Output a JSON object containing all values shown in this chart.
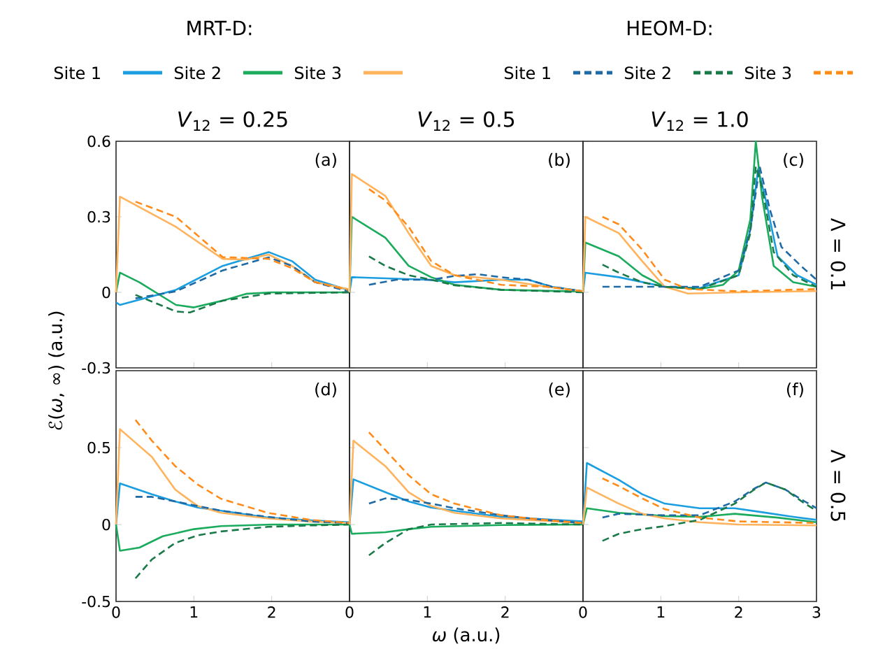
{
  "chart_data": [
    {
      "type": "line",
      "title": "*V*$_{12}$ = 0.25",
      "legend": "top",
      "legend_title": "MRT-D:",
      "annotations": [
        "(a)"
      ],
      "xlim": [
        0,
        3
      ],
      "ylim": [
        -0.3,
        0.6
      ],
      "xticks": [
        0,
        1,
        2,
        3
      ],
      "yticks": [
        -0.3,
        0,
        0.3,
        0.6
      ],
      "tick_labels": "y",
      "series": [
        {
          "name": "Site 1",
          "color": "#1a9ee0",
          "line_style": "solid",
          "x": [
            0,
            0.05,
            0.77,
            1.37,
            1.96,
            2.26,
            2.56,
            2.98
          ],
          "values": [
            -0.04,
            -0.05,
            0.01,
            0.105,
            0.16,
            0.124,
            0.05,
            0.01
          ]
        },
        {
          "name": "Site 2",
          "color": "#1aab5c",
          "line_style": "solid",
          "x": [
            0,
            0.05,
            0.3,
            0.77,
            1.0,
            1.37,
            1.67,
            2.0,
            3.0
          ],
          "values": [
            0,
            0.078,
            0.04,
            -0.05,
            -0.06,
            -0.033,
            -0.006,
            0,
            0
          ]
        },
        {
          "name": "Site 3",
          "color": "#ffb35c",
          "line_style": "solid",
          "x": [
            0,
            0.05,
            0.77,
            1.37,
            1.67,
            1.96,
            2.26,
            2.56,
            2.98
          ],
          "values": [
            0,
            0.38,
            0.26,
            0.133,
            0.13,
            0.15,
            0.105,
            0.04,
            0.013
          ]
        },
        {
          "color": "#1f6aa5",
          "line_style": "dashed",
          "x": [
            0.25,
            0.77,
            1.37,
            1.96,
            2.26,
            2.56,
            2.98
          ],
          "values": [
            -0.024,
            0.004,
            0.087,
            0.139,
            0.105,
            0.04,
            0.004
          ]
        },
        {
          "color": "#1a7a4a",
          "line_style": "dashed",
          "x": [
            0.25,
            0.77,
            0.95,
            1.37,
            1.96,
            3.0
          ],
          "values": [
            -0.01,
            -0.076,
            -0.08,
            -0.033,
            -0.005,
            0
          ]
        },
        {
          "color": "#ff8c1a",
          "line_style": "dashed",
          "x": [
            0.25,
            0.77,
            1.37,
            1.96,
            2.26,
            2.56,
            2.98
          ],
          "values": [
            0.36,
            0.3,
            0.14,
            0.133,
            0.096,
            0.04,
            0.01
          ]
        }
      ]
    },
    {
      "type": "line",
      "title": "*V*$_{12}$ = 0.5",
      "annotations": [
        "(b)"
      ],
      "xlim": [
        0,
        3
      ],
      "ylim": [
        -0.3,
        0.6
      ],
      "xticks": [
        0,
        1,
        2,
        3
      ],
      "yticks": [
        -0.3,
        0,
        0.3,
        0.6
      ],
      "tick_labels": false,
      "series": [
        {
          "color": "#1a9ee0",
          "line_style": "solid",
          "x": [
            0,
            0.03,
            1.0,
            1.35,
            1.95,
            2.3,
            2.6,
            3.0
          ],
          "values": [
            0,
            0.06,
            0.05,
            0.04,
            0.05,
            0.05,
            0.022,
            0.004
          ]
        },
        {
          "color": "#1aab5c",
          "line_style": "solid",
          "x": [
            0,
            0.03,
            0.46,
            0.76,
            1.05,
            1.35,
            1.95,
            3.0
          ],
          "values": [
            0,
            0.3,
            0.217,
            0.105,
            0.06,
            0.03,
            0.01,
            0.003
          ]
        },
        {
          "color": "#ffb35c",
          "line_style": "solid",
          "x": [
            0,
            0.03,
            0.46,
            0.76,
            1.05,
            1.35,
            1.95,
            2.54,
            2.99
          ],
          "values": [
            0,
            0.47,
            0.383,
            0.235,
            0.105,
            0.068,
            0.05,
            0.022,
            0.004
          ]
        },
        {
          "color": "#1f6aa5",
          "line_style": "dashed",
          "x": [
            0.25,
            0.6,
            1.05,
            1.35,
            1.65,
            1.95,
            2.3,
            2.6,
            3.0
          ],
          "values": [
            0.03,
            0.05,
            0.05,
            0.065,
            0.072,
            0.06,
            0.05,
            0.022,
            0.004
          ]
        },
        {
          "color": "#1a7a4a",
          "line_style": "dashed",
          "x": [
            0.25,
            0.46,
            0.76,
            1.05,
            1.35,
            1.95,
            3.0
          ],
          "values": [
            0.143,
            0.105,
            0.068,
            0.05,
            0.028,
            0.01,
            0
          ]
        },
        {
          "color": "#ff8c1a",
          "line_style": "dashed",
          "x": [
            0.25,
            0.46,
            0.76,
            1.05,
            1.35,
            1.95,
            2.54,
            3.0
          ],
          "values": [
            0.41,
            0.365,
            0.26,
            0.124,
            0.068,
            0.03,
            0.022,
            0.004
          ]
        }
      ]
    },
    {
      "type": "line",
      "title": "*V*$_{12}$ = 1.0",
      "y2label": "Λ = 0.1",
      "legend": "top",
      "legend_title": "HEOM-D:",
      "annotations": [
        "(c)"
      ],
      "xlim": [
        0,
        3
      ],
      "ylim": [
        -0.3,
        0.6
      ],
      "xticks": [
        0,
        1,
        2,
        3
      ],
      "yticks": [
        -0.3,
        0,
        0.3,
        0.6
      ],
      "tick_labels": false,
      "series": [
        {
          "color": "#1a9ee0",
          "line_style": "solid",
          "x": [
            0,
            0.03,
            0.46,
            1.05,
            1.5,
            2.0,
            2.15,
            2.25,
            2.35,
            2.5,
            2.75,
            3.0
          ],
          "values": [
            0,
            0.078,
            0.06,
            0.022,
            0.017,
            0.068,
            0.25,
            0.49,
            0.365,
            0.143,
            0.068,
            0.03
          ]
        },
        {
          "color": "#1aab5c",
          "line_style": "solid",
          "x": [
            0,
            0.03,
            0.46,
            0.76,
            1.05,
            1.5,
            1.8,
            2.0,
            2.15,
            2.22,
            2.3,
            2.45,
            2.7,
            3.0
          ],
          "values": [
            0,
            0.198,
            0.143,
            0.068,
            0.022,
            0.013,
            0.03,
            0.087,
            0.29,
            0.6,
            0.38,
            0.105,
            0.04,
            0.022
          ]
        },
        {
          "color": "#ffb35c",
          "line_style": "solid",
          "x": [
            0,
            0.03,
            0.46,
            0.76,
            1.05,
            1.35,
            2.0,
            3.0
          ],
          "values": [
            0,
            0.3,
            0.235,
            0.124,
            0.022,
            -0.005,
            0,
            0.005
          ]
        },
        {
          "name": "Site 1",
          "color": "#1f6aa5",
          "line_style": "dashed",
          "x": [
            0.25,
            0.6,
            1.05,
            1.5,
            2.0,
            2.15,
            2.27,
            2.4,
            2.55,
            2.8,
            3.0
          ],
          "values": [
            0.022,
            0.022,
            0.022,
            0.022,
            0.087,
            0.25,
            0.5,
            0.33,
            0.18,
            0.105,
            0.05
          ]
        },
        {
          "name": "Site 2",
          "color": "#1a7a4a",
          "line_style": "dashed",
          "x": [
            0.25,
            0.46,
            0.76,
            1.05,
            1.5,
            2.0,
            2.15,
            2.22,
            2.3,
            2.45,
            2.7,
            3.0
          ],
          "values": [
            0.11,
            0.078,
            0.04,
            0.022,
            0.013,
            0.068,
            0.235,
            0.5,
            0.42,
            0.16,
            0.068,
            0.022
          ]
        },
        {
          "name": "Site 3",
          "color": "#ff8c1a",
          "line_style": "dashed",
          "x": [
            0.25,
            0.46,
            0.76,
            1.05,
            1.35,
            2.0,
            3.0
          ],
          "values": [
            0.3,
            0.27,
            0.17,
            0.05,
            0.013,
            0.004,
            0.013
          ]
        }
      ]
    },
    {
      "type": "line",
      "ylabel": "ℰ(*ω*, ∞) (a.u.)",
      "annotations": [
        "(d)"
      ],
      "xlim": [
        0,
        3
      ],
      "ylim": [
        -0.5,
        1.0
      ],
      "xticks": [
        0,
        1,
        2
      ],
      "yticks": [
        -0.5,
        0,
        0.5
      ],
      "series": [
        {
          "color": "#1a9ee0",
          "line_style": "solid",
          "x": [
            0,
            0.05,
            0.46,
            0.76,
            1.05,
            1.35,
            1.95,
            2.5,
            3.0
          ],
          "values": [
            0,
            0.267,
            0.197,
            0.15,
            0.11,
            0.09,
            0.045,
            0.027,
            0.015
          ]
        },
        {
          "color": "#1aab5c",
          "line_style": "solid",
          "x": [
            0,
            0.05,
            0.3,
            0.6,
            1.0,
            1.35,
            2.0,
            3.0
          ],
          "values": [
            0,
            -0.17,
            -0.15,
            -0.076,
            -0.03,
            -0.01,
            0,
            0
          ]
        },
        {
          "color": "#ffb35c",
          "line_style": "solid",
          "x": [
            0,
            0.05,
            0.46,
            0.76,
            1.05,
            1.35,
            1.95,
            2.5,
            3.0
          ],
          "values": [
            0,
            0.62,
            0.44,
            0.227,
            0.12,
            0.076,
            0.04,
            0.02,
            0.01
          ]
        },
        {
          "color": "#1f6aa5",
          "line_style": "dashed",
          "x": [
            0.25,
            0.46,
            0.76,
            1.05,
            1.35,
            1.95,
            2.5,
            3.0
          ],
          "values": [
            0.18,
            0.18,
            0.15,
            0.12,
            0.09,
            0.05,
            0.02,
            0.01
          ]
        },
        {
          "color": "#1a7a4a",
          "line_style": "dashed",
          "x": [
            0.25,
            0.46,
            0.76,
            1.05,
            1.35,
            1.95,
            2.5,
            3.0
          ],
          "values": [
            -0.35,
            -0.227,
            -0.12,
            -0.07,
            -0.045,
            -0.015,
            -0.006,
            0
          ]
        },
        {
          "color": "#ff8c1a",
          "line_style": "dashed",
          "x": [
            0.25,
            0.46,
            0.76,
            1.05,
            1.35,
            1.95,
            2.5,
            3.0
          ],
          "values": [
            0.68,
            0.545,
            0.38,
            0.26,
            0.167,
            0.076,
            0.03,
            0.01
          ]
        }
      ]
    },
    {
      "type": "line",
      "xlabel": "*ω* (a.u.)",
      "annotations": [
        "(e)"
      ],
      "xlim": [
        0,
        3
      ],
      "ylim": [
        -0.5,
        1.0
      ],
      "xticks": [
        0,
        1,
        2
      ],
      "yticks": [
        -0.5,
        0,
        0.5
      ],
      "tick_labels": "x",
      "series": [
        {
          "color": "#1a9ee0",
          "line_style": "solid",
          "x": [
            0,
            0.05,
            0.46,
            0.76,
            1.05,
            1.35,
            1.95,
            3.0
          ],
          "values": [
            0,
            0.294,
            0.21,
            0.15,
            0.11,
            0.09,
            0.05,
            0.02
          ]
        },
        {
          "color": "#1aab5c",
          "line_style": "solid",
          "x": [
            0,
            0.03,
            0.46,
            0.76,
            1.05,
            1.95,
            3.0
          ],
          "values": [
            0,
            -0.06,
            -0.05,
            -0.03,
            -0.015,
            -0.003,
            0
          ]
        },
        {
          "color": "#ffb35c",
          "line_style": "solid",
          "x": [
            0,
            0.05,
            0.46,
            0.76,
            1.05,
            1.35,
            1.95,
            3.0
          ],
          "values": [
            0,
            0.545,
            0.38,
            0.21,
            0.12,
            0.076,
            0.04,
            0.01
          ]
        },
        {
          "color": "#1f6aa5",
          "line_style": "dashed",
          "x": [
            0.25,
            0.46,
            0.76,
            1.05,
            1.35,
            1.95,
            2.5,
            3.0
          ],
          "values": [
            0.136,
            0.17,
            0.16,
            0.136,
            0.106,
            0.06,
            0.03,
            0.01
          ]
        },
        {
          "color": "#1a7a4a",
          "line_style": "dashed",
          "x": [
            0.25,
            0.46,
            0.76,
            1.05,
            1.95,
            3.0
          ],
          "values": [
            -0.2,
            -0.12,
            -0.03,
            0,
            0.01,
            0
          ]
        },
        {
          "color": "#ff8c1a",
          "line_style": "dashed",
          "x": [
            0.25,
            0.46,
            0.76,
            1.05,
            1.35,
            1.95,
            2.5,
            3.0
          ],
          "values": [
            0.6,
            0.485,
            0.32,
            0.197,
            0.136,
            0.06,
            0.03,
            0.01
          ]
        }
      ]
    },
    {
      "type": "line",
      "y2label": "Λ = 0.5",
      "annotations": [
        "(f)"
      ],
      "xlim": [
        0,
        3
      ],
      "ylim": [
        -0.5,
        1.0
      ],
      "xticks": [
        0,
        1,
        2,
        3
      ],
      "yticks": [
        -0.5,
        0,
        0.5
      ],
      "tick_labels": "x",
      "series": [
        {
          "color": "#1a9ee0",
          "line_style": "solid",
          "x": [
            0,
            0.05,
            0.46,
            0.76,
            1.05,
            1.5,
            1.95,
            2.3,
            2.7,
            3.0
          ],
          "values": [
            0,
            0.4,
            0.29,
            0.197,
            0.136,
            0.106,
            0.106,
            0.08,
            0.05,
            0.03
          ]
        },
        {
          "color": "#1aab5c",
          "line_style": "solid",
          "x": [
            0,
            0.05,
            0.46,
            1.05,
            1.5,
            1.95,
            2.5,
            3.0
          ],
          "values": [
            0,
            0.106,
            0.076,
            0.055,
            0.05,
            0.07,
            0.045,
            0.015
          ]
        },
        {
          "color": "#ffb35c",
          "line_style": "solid",
          "x": [
            0,
            0.05,
            0.46,
            0.76,
            1.05,
            1.5,
            2.0,
            3.0
          ],
          "values": [
            0,
            0.24,
            0.136,
            0.07,
            0.04,
            0.015,
            0,
            -0.006
          ]
        },
        {
          "color": "#1f6aa5",
          "line_style": "dashed",
          "x": [
            0.25,
            0.46,
            1.05,
            1.5,
            1.95,
            2.2,
            2.35,
            2.6,
            2.85,
            3.0
          ],
          "values": [
            0.045,
            0.07,
            0.06,
            0.06,
            0.15,
            0.233,
            0.273,
            0.227,
            0.15,
            0.106
          ]
        },
        {
          "color": "#1a7a4a",
          "line_style": "dashed",
          "x": [
            0.25,
            0.46,
            0.76,
            1.05,
            1.5,
            1.95,
            2.2,
            2.35,
            2.6,
            2.85,
            3.0
          ],
          "values": [
            -0.106,
            -0.06,
            -0.03,
            -0.01,
            0.03,
            0.136,
            0.227,
            0.273,
            0.227,
            0.136,
            0.09
          ]
        },
        {
          "color": "#ff8c1a",
          "line_style": "dashed",
          "x": [
            0.25,
            0.46,
            0.76,
            1.05,
            1.5,
            2.0,
            3.0
          ],
          "values": [
            0.3,
            0.25,
            0.17,
            0.1,
            0.045,
            0.02,
            0.01
          ]
        }
      ]
    }
  ]
}
